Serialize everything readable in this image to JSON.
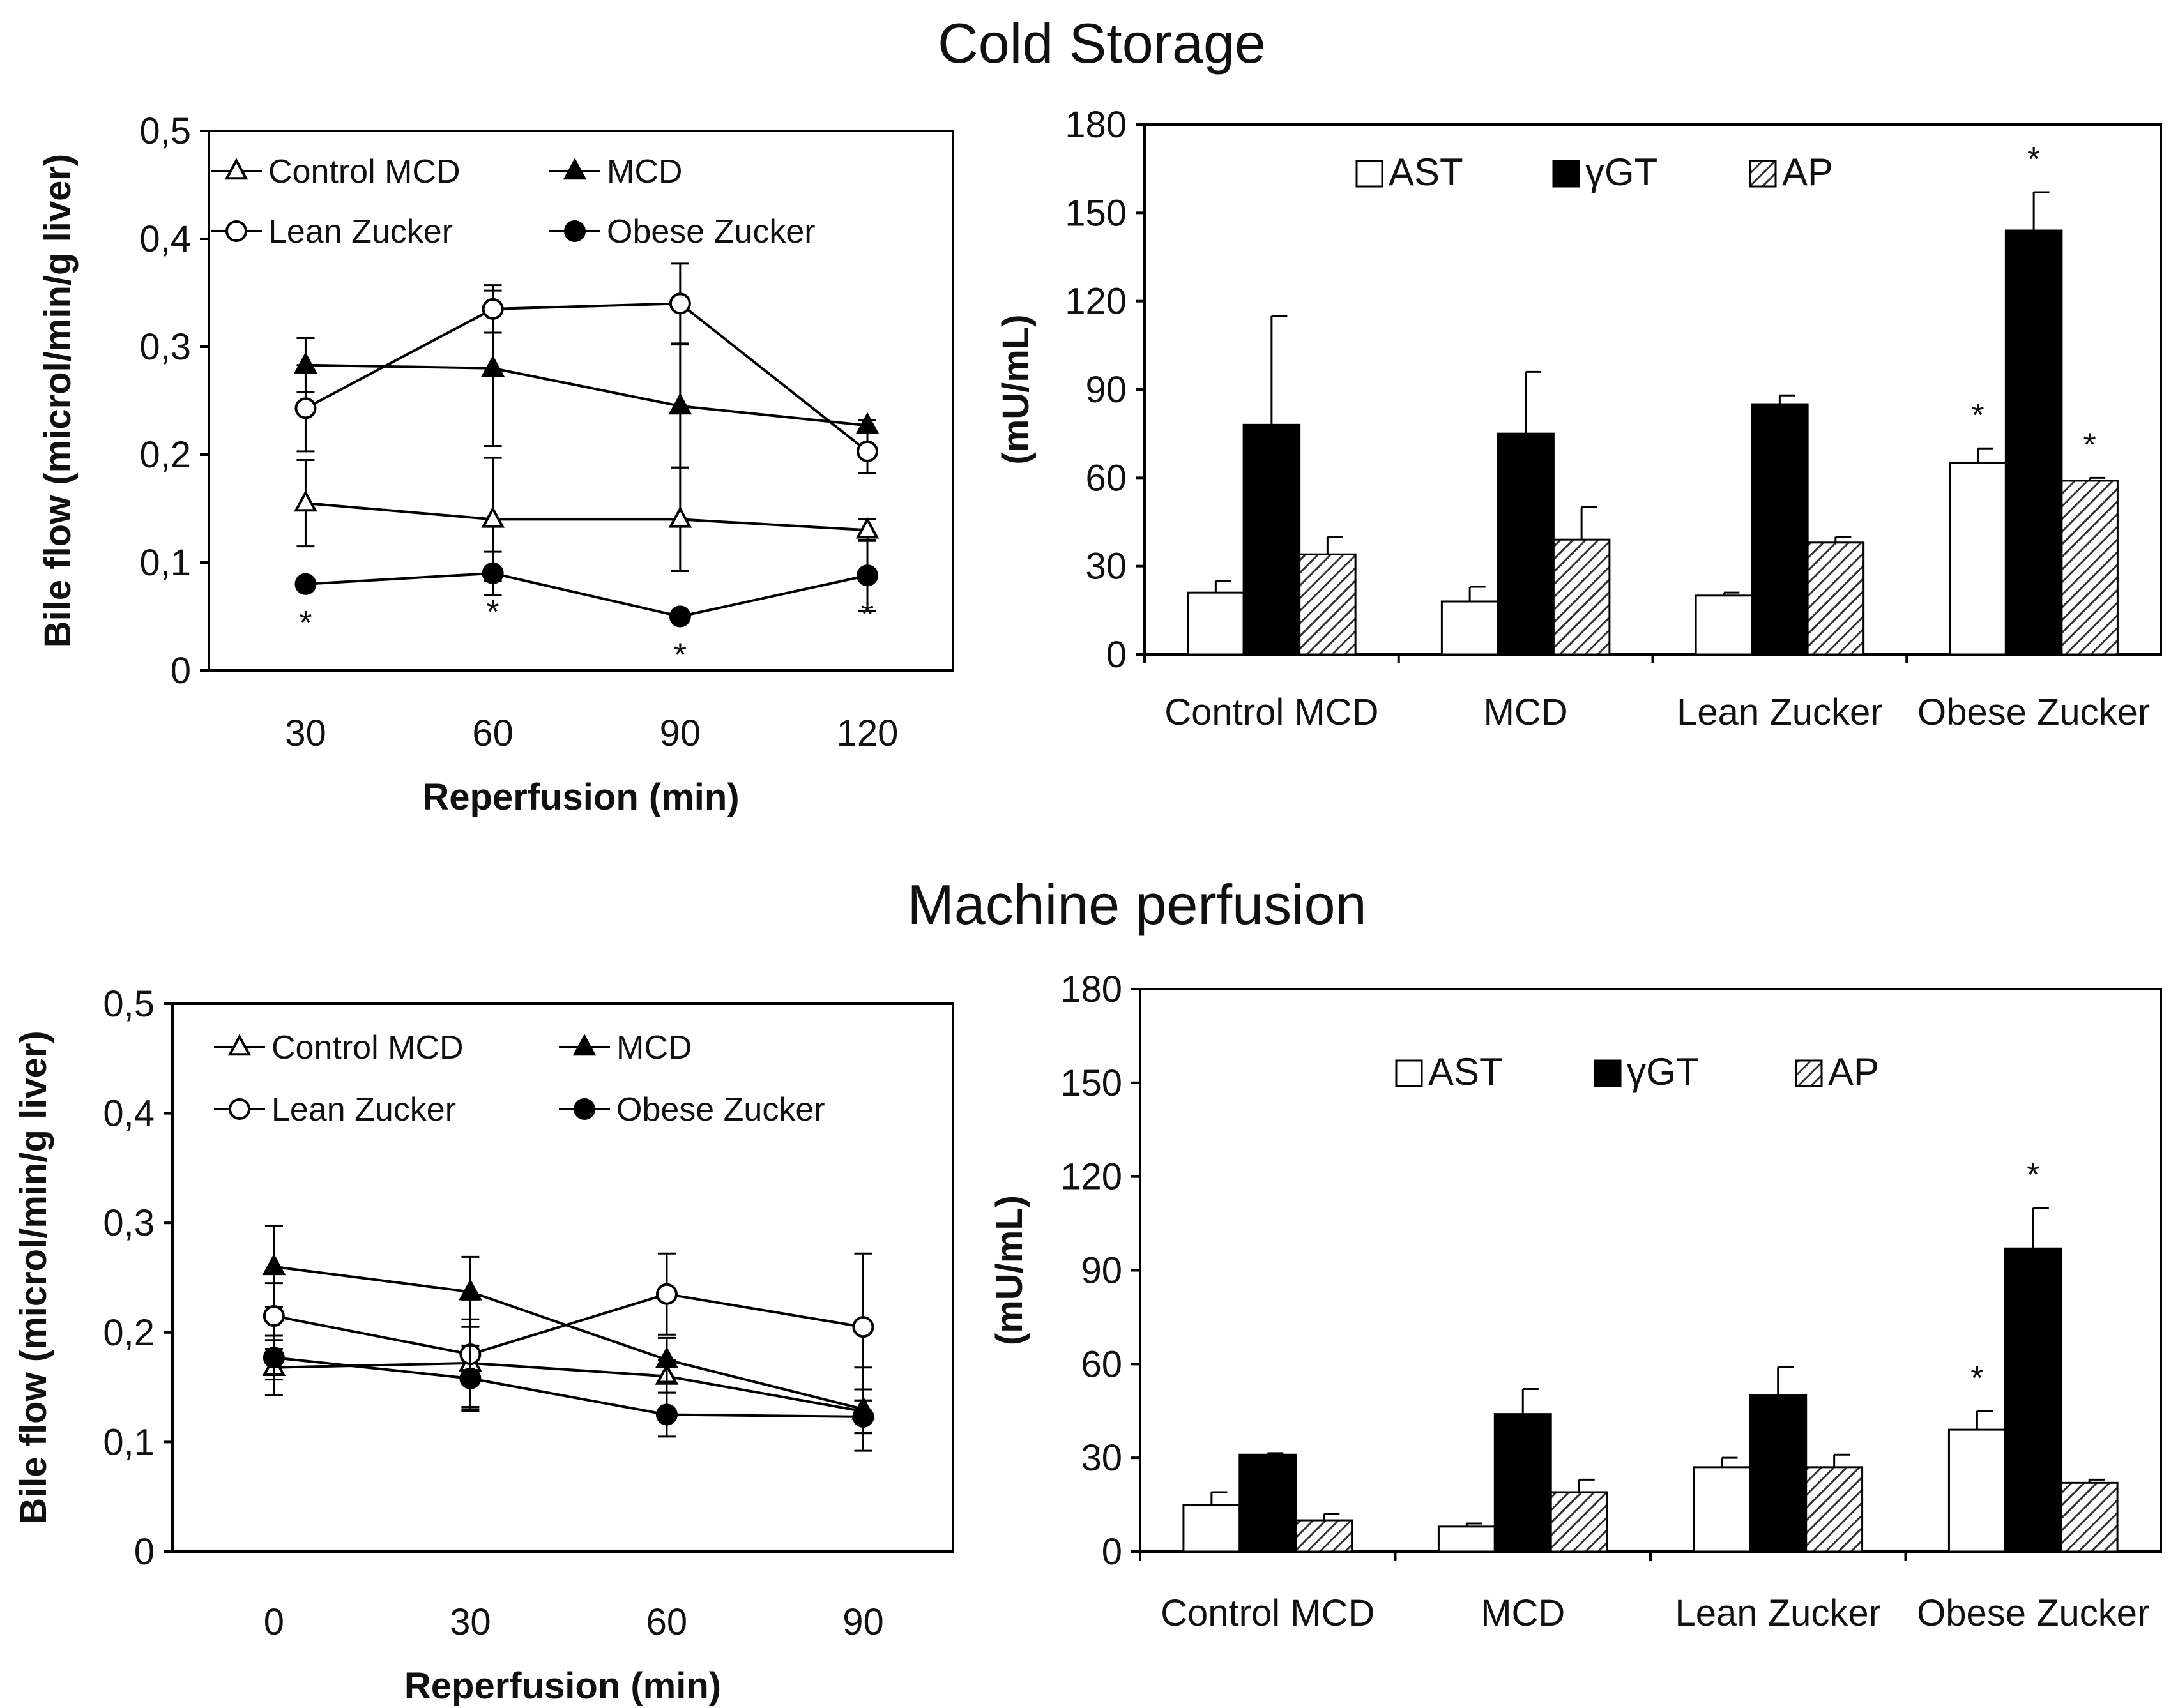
{
  "section_titles": [
    "Cold Storage",
    "Machine perfusion"
  ],
  "chart_data": [
    {
      "type": "line",
      "title": "Cold Storage",
      "xlabel": "Reperfusion (min)",
      "ylabel": "Bile flow (microl/min/g liver)",
      "x": [
        30,
        60,
        90,
        120
      ],
      "ylim": [
        0,
        0.5
      ],
      "yticks": [
        0,
        0.1,
        0.2,
        0.3,
        0.4,
        0.5
      ],
      "ytick_labels": [
        "0",
        "0,1",
        "0,2",
        "0,3",
        "0,4",
        "0,5"
      ],
      "series": [
        {
          "name": "Control MCD",
          "marker": "open-triangle",
          "values": [
            0.155,
            0.14,
            0.14,
            0.13
          ],
          "errors": [
            0.04,
            0.057,
            0.048,
            0.01
          ]
        },
        {
          "name": "MCD",
          "marker": "filled-triangle",
          "values": [
            0.283,
            0.28,
            0.245,
            0.227
          ],
          "errors": [
            0.025,
            0.072,
            0.057,
            0.005
          ]
        },
        {
          "name": "Lean Zucker",
          "marker": "open-circle",
          "values": [
            0.243,
            0.335,
            0.34,
            0.203
          ],
          "errors": [
            0.04,
            0.022,
            0.037,
            0.02
          ]
        },
        {
          "name": "Obese Zucker",
          "marker": "filled-circle",
          "values": [
            0.08,
            0.09,
            0.05,
            0.088
          ],
          "errors": [
            0.005,
            0.02,
            0.005,
            0.033
          ]
        }
      ],
      "annotations": [
        {
          "x": 30,
          "text": "*"
        },
        {
          "x": 60,
          "text": "*"
        },
        {
          "x": 90,
          "text": "*"
        },
        {
          "x": 120,
          "text": "*"
        }
      ]
    },
    {
      "type": "bar",
      "title": "Cold Storage",
      "ylabel": "(mU/mL)",
      "categories": [
        "Control MCD",
        "MCD",
        "Lean Zucker",
        "Obese Zucker"
      ],
      "ylim": [
        0,
        180
      ],
      "yticks": [
        0,
        30,
        60,
        90,
        120,
        150,
        180
      ],
      "legend": [
        "AST",
        "γGT",
        "AP"
      ],
      "series": [
        {
          "name": "AST",
          "fill": "white",
          "values": [
            21,
            18,
            20,
            65
          ],
          "errors": [
            4,
            5,
            1,
            5
          ],
          "stars": [
            false,
            false,
            false,
            true
          ]
        },
        {
          "name": "γGT",
          "fill": "black",
          "values": [
            78,
            75,
            85,
            144
          ],
          "errors": [
            37,
            21,
            3,
            13
          ],
          "stars": [
            false,
            false,
            false,
            true
          ]
        },
        {
          "name": "AP",
          "fill": "hatched",
          "values": [
            34,
            39,
            38,
            59
          ],
          "errors": [
            6,
            11,
            2,
            1
          ],
          "stars": [
            false,
            false,
            false,
            true
          ]
        }
      ]
    },
    {
      "type": "line",
      "title": "Machine perfusion",
      "xlabel": "Reperfusion (min)",
      "ylabel": "Bile flow (microl/min/g liver)",
      "x": [
        0,
        30,
        60,
        90
      ],
      "ylim": [
        0,
        0.5
      ],
      "yticks": [
        0,
        0.1,
        0.2,
        0.3,
        0.4,
        0.5
      ],
      "ytick_labels": [
        "0",
        "0,1",
        "0,2",
        "0,3",
        "0,4",
        "0,5"
      ],
      "series": [
        {
          "name": "Control MCD",
          "marker": "open-triangle",
          "values": [
            0.168,
            0.172,
            0.16,
            0.128
          ],
          "errors": [
            0.025,
            0.04,
            0.015,
            0.02
          ]
        },
        {
          "name": "MCD",
          "marker": "filled-triangle",
          "values": [
            0.26,
            0.237,
            0.175,
            0.13
          ],
          "errors": [
            0.037,
            0.032,
            0.02,
            0.038
          ]
        },
        {
          "name": "Lean Zucker",
          "marker": "open-circle",
          "values": [
            0.215,
            0.18,
            0.235,
            0.205
          ],
          "errors": [
            0.03,
            0.05,
            0.037,
            0.067
          ]
        },
        {
          "name": "Obese Zucker",
          "marker": "filled-circle",
          "values": [
            0.177,
            0.158,
            0.125,
            0.123
          ],
          "errors": [
            0.02,
            0.03,
            0.02,
            0.015
          ]
        }
      ]
    },
    {
      "type": "bar",
      "title": "Machine perfusion",
      "ylabel": "(mU/mL)",
      "categories": [
        "Control MCD",
        "MCD",
        "Lean Zucker",
        "Obese Zucker"
      ],
      "ylim": [
        0,
        180
      ],
      "yticks": [
        0,
        30,
        60,
        90,
        120,
        150,
        180
      ],
      "legend": [
        "AST",
        "γGT",
        "AP"
      ],
      "series": [
        {
          "name": "AST",
          "fill": "white",
          "values": [
            15,
            8,
            27,
            39
          ],
          "errors": [
            4,
            1,
            3,
            6
          ],
          "stars": [
            false,
            false,
            false,
            true
          ]
        },
        {
          "name": "γGT",
          "fill": "black",
          "values": [
            31,
            44,
            50,
            97
          ],
          "errors": [
            0.5,
            8,
            9,
            13
          ],
          "stars": [
            false,
            false,
            false,
            true
          ]
        },
        {
          "name": "AP",
          "fill": "hatched",
          "values": [
            10,
            19,
            27,
            22
          ],
          "errors": [
            2,
            4,
            4,
            1
          ],
          "stars": [
            false,
            false,
            false,
            false
          ]
        }
      ]
    }
  ]
}
